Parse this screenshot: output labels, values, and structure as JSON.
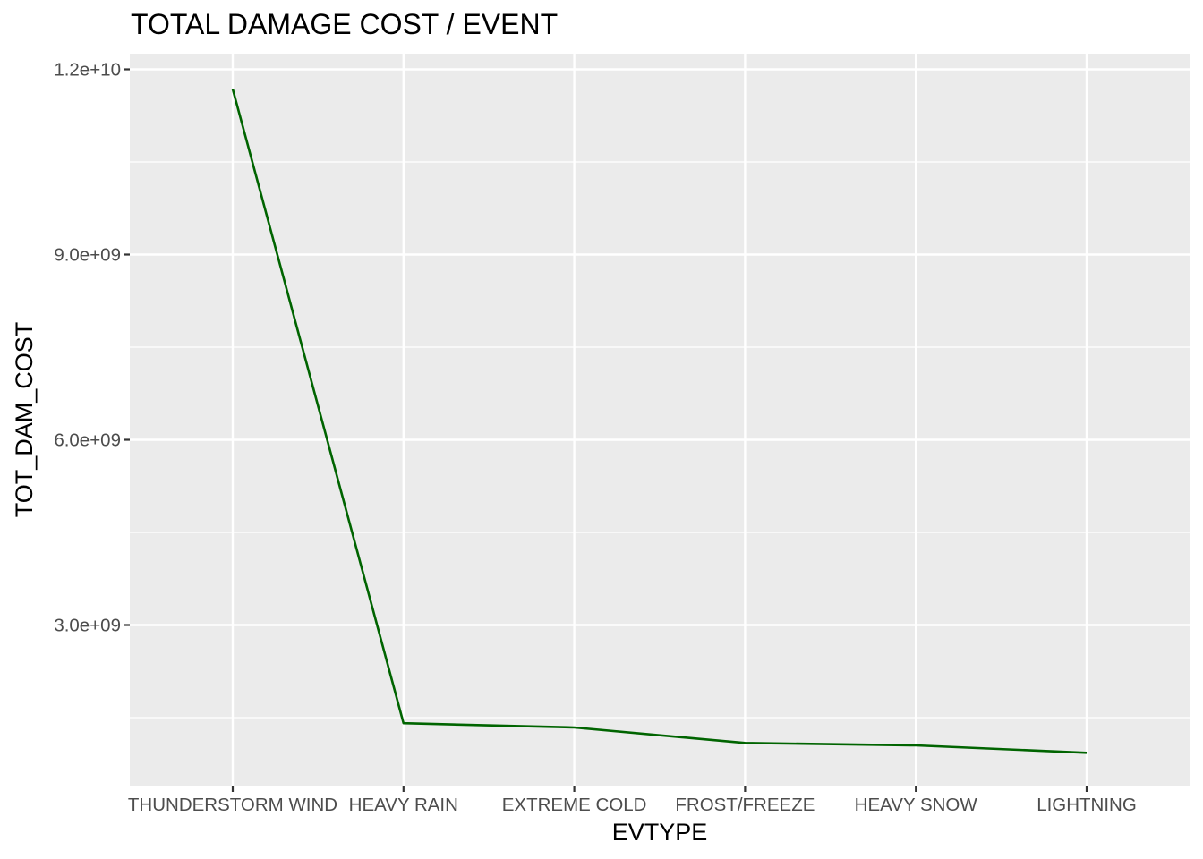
{
  "chart_data": {
    "type": "line",
    "title": "TOTAL DAMAGE COST / EVENT",
    "xlabel": "EVTYPE",
    "ylabel": "TOT_DAM_COST",
    "categories": [
      "THUNDERSTORM WIND",
      "HEAVY RAIN",
      "EXTREME COLD",
      "FROST/FREEZE",
      "HEAVY SNOW",
      "LIGHTNING"
    ],
    "series": [
      {
        "values": [
          11680000000,
          1410000000,
          1340000000,
          1090000000,
          1050000000,
          930000000
        ]
      }
    ],
    "ylim": [
      0,
      12200000000
    ],
    "y_ticks": [
      3000000000,
      6000000000,
      9000000000,
      12000000000
    ],
    "y_tick_labels": [
      "3.0e+09",
      "6.0e+09",
      "9.0e+09",
      "1.2e+10"
    ],
    "grid": true,
    "colors": {
      "line": "#006400",
      "panel_background": "#ebebeb",
      "grid": "#ffffff",
      "tick_text": "#4d4d4d",
      "tick_mark": "#333333"
    }
  }
}
